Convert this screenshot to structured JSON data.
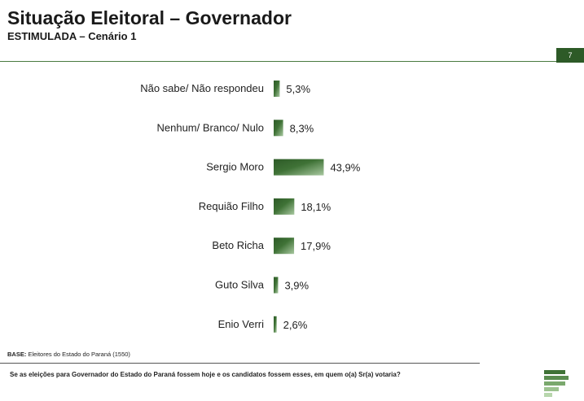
{
  "header": {
    "title": "Situação Eleitoral – Governador",
    "subtitle": "ESTIMULADA – Cenário 1",
    "page_number": "7"
  },
  "footer": {
    "base_label": "BASE:",
    "base_text": "Eleitores do Estado do Paraná (1550)",
    "question": "Se as eleições para Governador do Estado do Paraná fossem hoje e os candidatos fossem esses, em quem o(a) Sr(a) votaria?"
  },
  "colors": {
    "bar_dark": "#2d5a27",
    "bar_light": "#a8c8a0",
    "accent": "#2d5a27"
  },
  "chart_data": {
    "type": "bar",
    "orientation": "horizontal",
    "categories": [
      "Não sabe/ Não respondeu",
      "Nenhum/ Branco/ Nulo",
      "Sergio Moro",
      "Requião Filho",
      "Beto Richa",
      "Guto Silva",
      "Enio Verri"
    ],
    "values": [
      5.3,
      8.3,
      43.9,
      18.1,
      17.9,
      3.9,
      2.6
    ],
    "value_labels": [
      "5,3%",
      "8,3%",
      "43,9%",
      "18,1%",
      "17,9%",
      "3,9%",
      "2,6%"
    ],
    "unit": "%",
    "xlim": [
      0,
      100
    ],
    "grid": false,
    "legend": "none"
  }
}
